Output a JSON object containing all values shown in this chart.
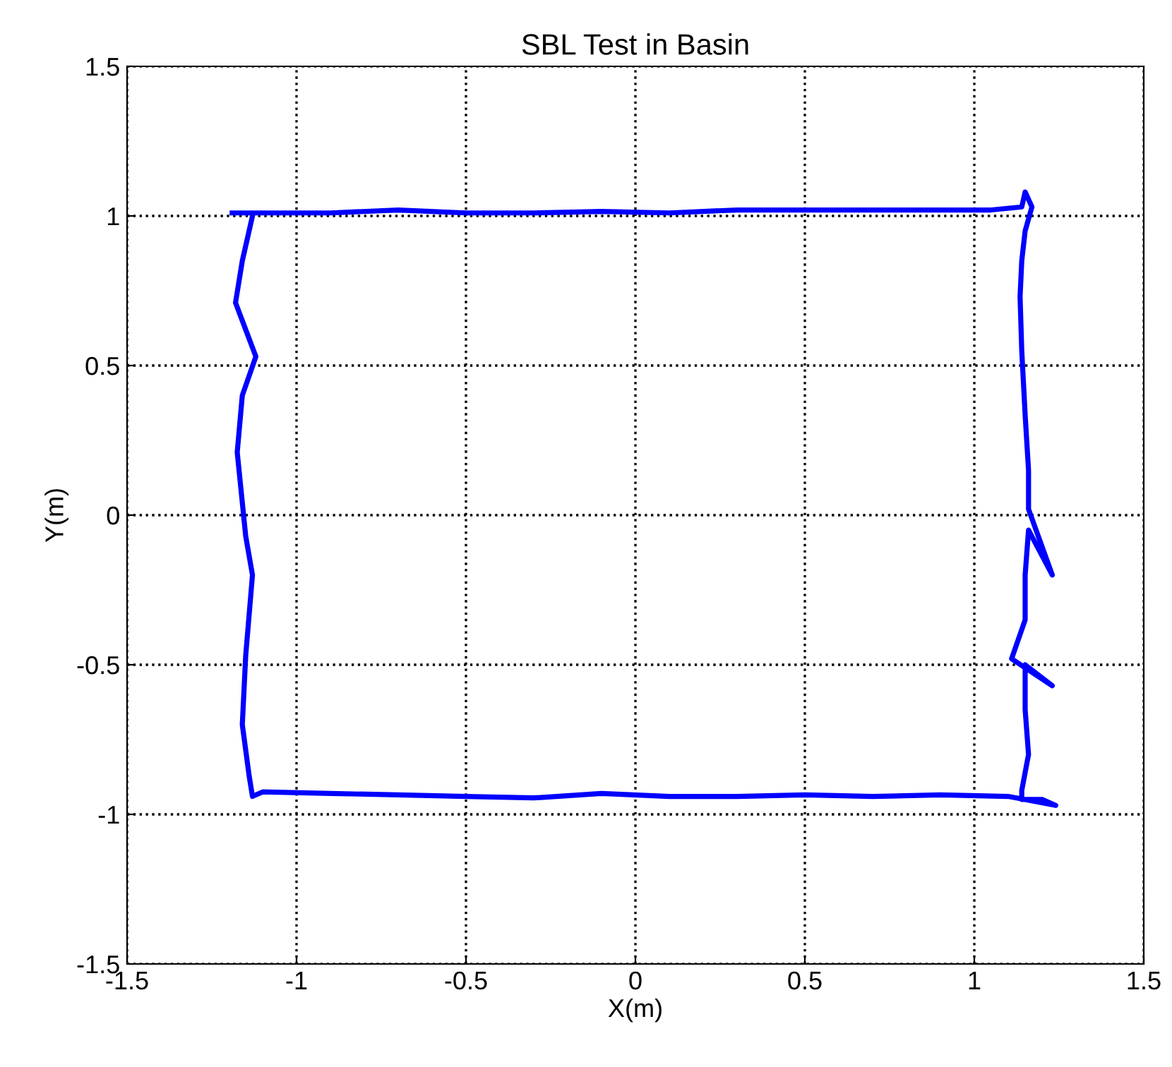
{
  "chart_data": {
    "type": "line",
    "title": "SBL Test in Basin",
    "xlabel": "X(m)",
    "ylabel": "Y(m)",
    "grid": true,
    "marker": "none",
    "line_style": "solid",
    "xlim": [
      -1.5,
      1.5
    ],
    "ylim": [
      -1.5,
      1.5
    ],
    "xticks": [
      -1.5,
      -1,
      -0.5,
      0,
      0.5,
      1,
      1.5
    ],
    "yticks": [
      -1.5,
      -1,
      -0.5,
      0,
      0.5,
      1,
      1.5
    ],
    "series": [
      {
        "color": "#0000ff",
        "x": [
          -1.19,
          -1.1,
          -0.9,
          -0.7,
          -0.5,
          -0.3,
          -0.1,
          0.1,
          0.3,
          0.5,
          0.7,
          0.9,
          1.05,
          1.14,
          1.15,
          1.17,
          1.15,
          1.14,
          1.135,
          1.14,
          1.15,
          1.16,
          1.16,
          1.23,
          1.16,
          1.15,
          1.15,
          1.11,
          1.23,
          1.15,
          1.15,
          1.16,
          1.14,
          1.14,
          1.2,
          1.24,
          1.1,
          0.9,
          0.7,
          0.5,
          0.3,
          0.1,
          -0.1,
          -0.3,
          -0.5,
          -0.7,
          -0.9,
          -1.1,
          -1.13,
          -1.14,
          -1.16,
          -1.15,
          -1.13,
          -1.15,
          -1.175,
          -1.16,
          -1.12,
          -1.15,
          -1.18,
          -1.16,
          -1.13
        ],
        "values": [
          1.01,
          1.01,
          1.01,
          1.02,
          1.01,
          1.01,
          1.015,
          1.01,
          1.02,
          1.02,
          1.02,
          1.02,
          1.02,
          1.03,
          1.08,
          1.03,
          0.95,
          0.85,
          0.73,
          0.55,
          0.335,
          0.15,
          0.02,
          -0.2,
          -0.05,
          -0.2,
          -0.35,
          -0.48,
          -0.57,
          -0.5,
          -0.65,
          -0.8,
          -0.92,
          -0.95,
          -0.95,
          -0.97,
          -0.94,
          -0.935,
          -0.94,
          -0.935,
          -0.94,
          -0.94,
          -0.93,
          -0.945,
          -0.94,
          -0.935,
          -0.93,
          -0.925,
          -0.94,
          -0.87,
          -0.7,
          -0.47,
          -0.2,
          -0.07,
          0.21,
          0.4,
          0.53,
          0.62,
          0.71,
          0.85,
          1.0
        ]
      }
    ]
  }
}
